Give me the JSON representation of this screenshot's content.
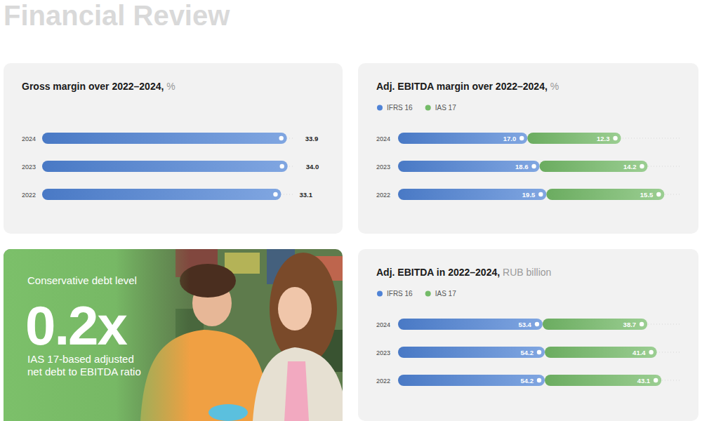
{
  "page": {
    "title": "Financial Review"
  },
  "chart_data": [
    {
      "type": "bar",
      "title": "Gross margin over 2022–2024,",
      "subtitle": "%",
      "categories": [
        "2024",
        "2023",
        "2022"
      ],
      "values": [
        33.9,
        34.0,
        33.1
      ],
      "value_labels": [
        "33.9",
        "34.0",
        "33.1"
      ],
      "color": "#4f83d6",
      "xlim": [
        0,
        35
      ],
      "orientation": "horizontal",
      "data_labels": true,
      "tick_labels": "y",
      "grid": false
    },
    {
      "type": "bar",
      "title": "Adj. EBITDA margin over 2022–2024,",
      "subtitle": "%",
      "categories": [
        "2024",
        "2023",
        "2022"
      ],
      "series": [
        {
          "name": "IFRS 16",
          "color": "#4f83d6",
          "values": [
            17.0,
            18.6,
            19.5
          ],
          "value_labels": [
            "17.0",
            "18.6",
            "19.5"
          ]
        },
        {
          "name": "IAS 17",
          "color": "#74bb68",
          "values": [
            12.3,
            14.2,
            15.5
          ]
        }
      ],
      "xlim": [
        0,
        37
      ],
      "orientation": "horizontal",
      "stacked": true,
      "data_labels": true,
      "tick_labels": "y",
      "legend": "top-left",
      "grid": false
    },
    {
      "type": "bar",
      "title": "Adj. EBITDA in 2022–2024,",
      "subtitle": "RUB billion",
      "categories": [
        "2024",
        "2023",
        "2022"
      ],
      "series": [
        {
          "name": "IFRS 16",
          "color": "#4f83d6",
          "values": [
            53.4,
            54.2,
            54.2
          ]
        },
        {
          "name": "IAS 17",
          "color": "#74bb68",
          "values": [
            38.7,
            41.4,
            43.1
          ]
        }
      ],
      "xlim": [
        0,
        104
      ],
      "orientation": "horizontal",
      "stacked": true,
      "data_labels": true,
      "tick_labels": "y",
      "legend": "top-left",
      "grid": false
    }
  ],
  "highlight": {
    "heading": "Conservative debt level",
    "value": "0.2x",
    "caption_lines": [
      "IAS 17-based adjusted",
      "net debt to EBITDA ratio"
    ]
  }
}
